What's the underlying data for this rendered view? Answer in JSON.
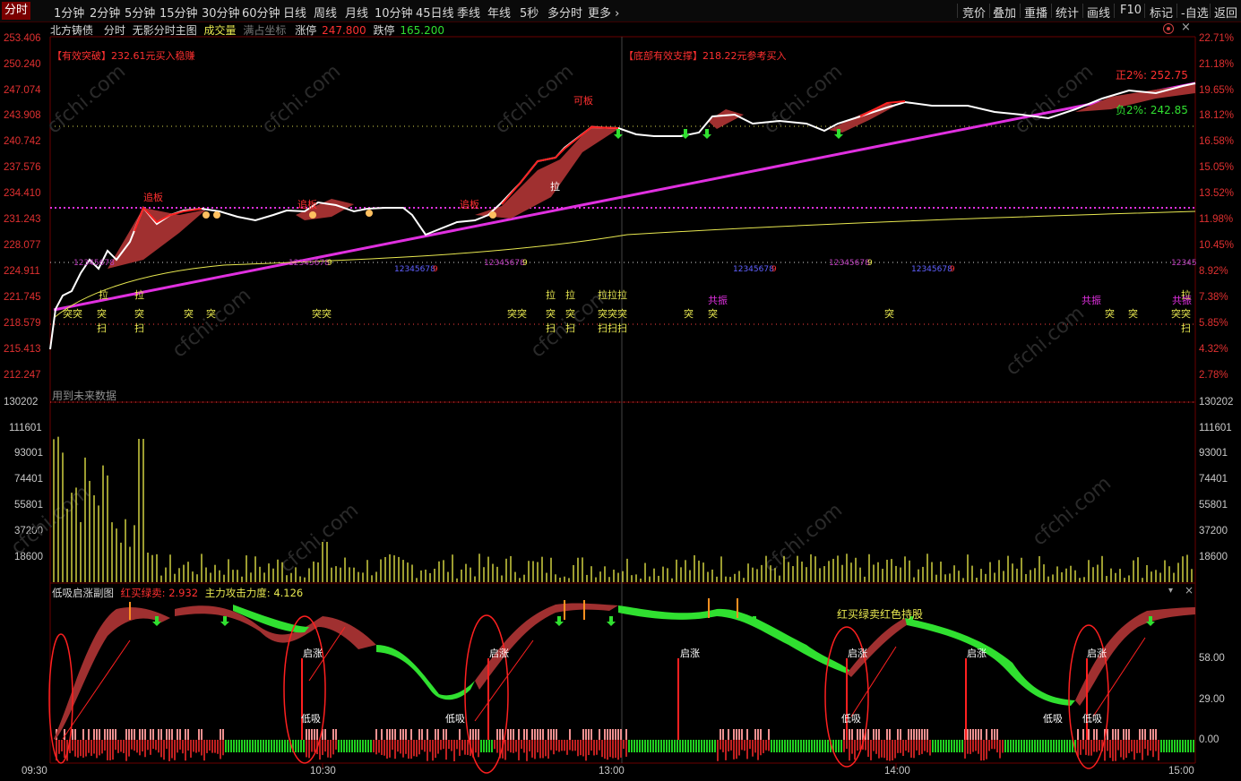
{
  "toolbar": {
    "periods": [
      "分时",
      "1分钟",
      "2分钟",
      "5分钟",
      "15分钟",
      "30分钟",
      "60分钟",
      "日线",
      "周线",
      "月线",
      "10分钟",
      "45日线",
      "季线",
      "年线",
      "5秒",
      "多分时",
      "更多"
    ],
    "right_items": [
      "竞价",
      "叠加",
      "重播",
      "统计",
      "画线",
      "F10",
      "标记",
      "自选",
      "返回"
    ]
  },
  "info": {
    "stock_name": "北方铸债",
    "mode": "分时",
    "indicator_name": "无影分时主图",
    "volume_label": "成交量",
    "full_coord_label": "满占坐标",
    "limit_up_label": "涨停",
    "limit_up_value": "247.800",
    "limit_down_label": "跌停",
    "limit_down_value": "165.200"
  },
  "main_annotations": {
    "breakthrough": "【有效突破】232.61元买入稳赚",
    "support": "【底部有效支撑】218.22元参考买入",
    "plus2": "正2%: 252.75",
    "minus2": "负2%: 242.85",
    "future_data": "用到未来数据"
  },
  "price_axis": {
    "left": [
      "253.406",
      "250.240",
      "247.074",
      "243.908",
      "240.742",
      "237.576",
      "234.410",
      "231.243",
      "228.077",
      "224.911",
      "221.745",
      "218.579",
      "215.413",
      "212.247"
    ],
    "right": [
      "22.71%",
      "21.18%",
      "19.65%",
      "18.12%",
      "16.58%",
      "15.05%",
      "13.52%",
      "11.98%",
      "10.45%",
      "8.92%",
      "7.38%",
      "5.85%",
      "4.32%",
      "2.78%"
    ]
  },
  "volume_axis": [
    "130202",
    "111601",
    "93001",
    "74401",
    "55801",
    "37200",
    "18600"
  ],
  "sub_panel": {
    "title": "低吸启涨副图",
    "label1": "红买绿卖:",
    "value1": "2.932",
    "label2": "主力攻击力度:",
    "value2": "4.126",
    "axis": [
      "58.00",
      "29.00",
      "0.00"
    ],
    "note": "红买绿卖红色持股"
  },
  "time_axis": [
    "09:30",
    "10:30",
    "13:00",
    "14:00",
    "15:00"
  ],
  "colors": {
    "up": "#ff3030",
    "down": "#00ff00",
    "price_line": "#ffffff",
    "trend": "#e030e0",
    "avg_line": "#e8e850",
    "grid": "#5a0000"
  }
}
